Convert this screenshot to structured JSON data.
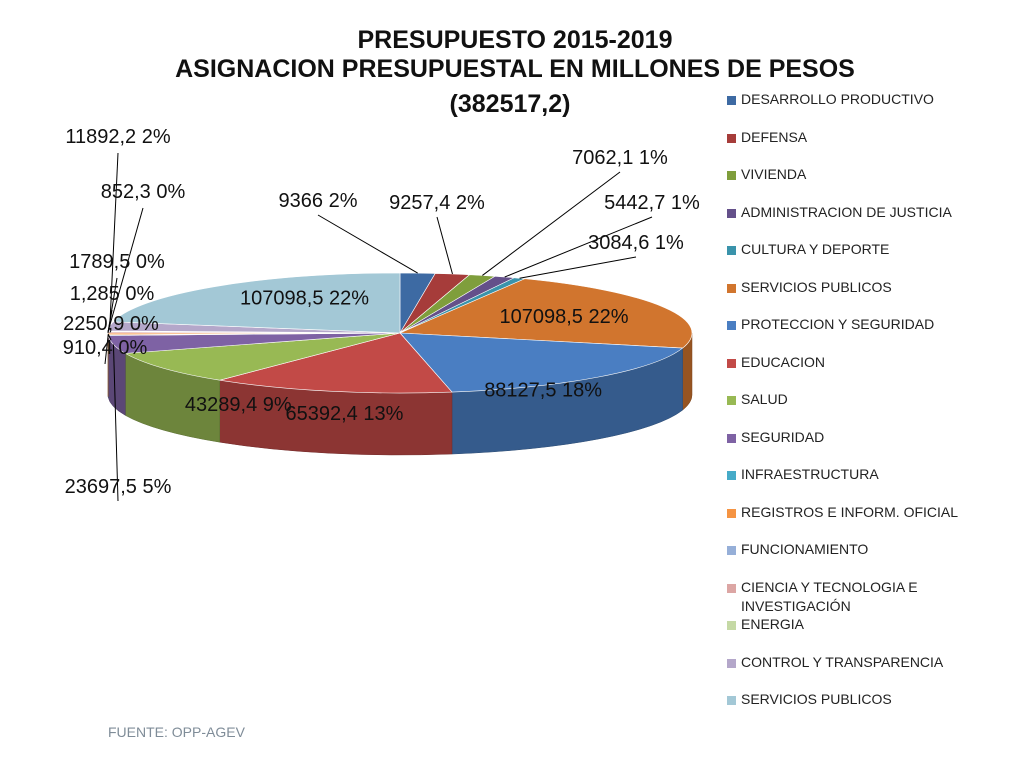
{
  "title": {
    "line1": "PRESUPUESTO 2015-2019",
    "line2": "ASIGNACION PRESUPUESTAL EN MILLONES DE PESOS",
    "line3": "(382517,2)"
  },
  "source": "FUENTE: OPP-AGEV",
  "chart_data": {
    "type": "pie",
    "style": "3d-exploded-pie",
    "title": "PRESUPUESTO 2015-2019 ASIGNACION PRESUPUESTAL EN MILLONES DE PESOS",
    "total": "(382517,2)",
    "legend_position": "right",
    "slices": [
      {
        "name": "DESARROLLO PRODUCTIVO",
        "value": 9366,
        "label": "9366 2%",
        "color": "#3d6aa3"
      },
      {
        "name": "DEFENSA",
        "value": 9257.4,
        "label": "9257,4 2%",
        "color": "#a63c3a"
      },
      {
        "name": "VIVIENDA",
        "value": 7062.1,
        "label": "7062,1 1%",
        "color": "#7f9e3c"
      },
      {
        "name": "ADMINISTRACION DE JUSTICIA",
        "value": 5442.7,
        "label": "5442,7 1%",
        "color": "#64508a"
      },
      {
        "name": "CULTURA Y DEPORTE",
        "value": 3084.6,
        "label": "3084,6 1%",
        "color": "#3a93ab"
      },
      {
        "name": "SERVICIOS PUBLICOS",
        "value": 107098.5,
        "label": "107098,5 22%",
        "color": "#d1752e"
      },
      {
        "name": "PROTECCION Y SEGURIDAD",
        "value": 88127.5,
        "label": "88127,5 18%",
        "color": "#4a7ec2"
      },
      {
        "name": "EDUCACION",
        "value": 65392.4,
        "label": "65392,4 13%",
        "color": "#c24a47"
      },
      {
        "name": "SALUD",
        "value": 43289.4,
        "label": "43289,4 9%",
        "color": "#98b954"
      },
      {
        "name": "SEGURIDAD",
        "value": 23697.5,
        "label": "23697,5 5%",
        "color": "#7e62a4"
      },
      {
        "name": "INFRAESTRUCTURA",
        "value": 910.4,
        "label": "910,4 0%",
        "color": "#46abc8"
      },
      {
        "name": "REGISTROS E INFORM. OFICIAL",
        "value": 2250.9,
        "label": "2250,9 0%",
        "color": "#f59443"
      },
      {
        "name": "FUNCIONAMIENTO",
        "value": 1.285,
        "label": "1,285 0%",
        "color": "#96afd8"
      },
      {
        "name": "CIENCIA Y TECNOLOGIA E INVESTIGACIÓN",
        "value": 1789.5,
        "label": "1789,5 0%",
        "color": "#dca6a4"
      },
      {
        "name": "ENERGIA",
        "value": 852.3,
        "label": "852,3 0%",
        "color": "#c5d9a5"
      },
      {
        "name": "CONTROL Y TRANSPARENCIA",
        "value": 11892.2,
        "label": "11892,2 2%",
        "color": "#b4a7ca"
      },
      {
        "name": "SERVICIOS PUBLICOS",
        "value": 107098.5,
        "label": "107098,5 22%",
        "color": "#a3c8d6"
      }
    ]
  }
}
